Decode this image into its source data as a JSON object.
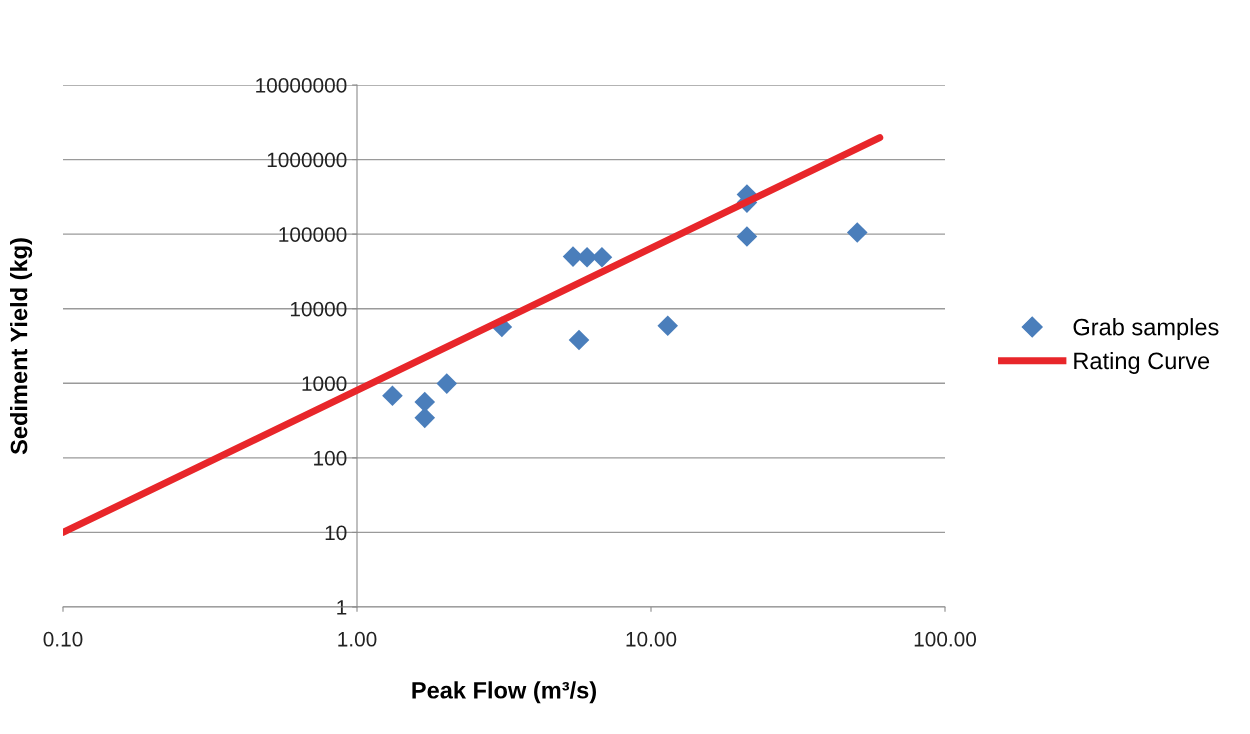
{
  "chart_data": {
    "type": "scatter",
    "xlabel": "Peak Flow (m³/s)",
    "ylabel": "Sediment Yield (kg)",
    "log": "xy",
    "grid": "y",
    "legend": "right",
    "xlim": [
      0.1,
      100
    ],
    "xticks": [
      {
        "value": 0.1,
        "label": "0.10"
      },
      {
        "value": 1,
        "label": "1.00"
      },
      {
        "value": 10,
        "label": "10.00"
      },
      {
        "value": 100,
        "label": "100.00"
      }
    ],
    "ylim": [
      1,
      10000000
    ],
    "yticks": [
      1,
      10,
      100,
      1000,
      10000,
      100000,
      1000000,
      10000000
    ],
    "series": [
      {
        "name": "Grab samples",
        "marker": "diamond",
        "color": "#4a7ebb",
        "x": [
          1.32,
          1.7,
          1.7,
          2.02,
          3.11,
          5.43,
          6.06,
          6.81,
          5.69,
          11.4,
          21.2,
          21.2,
          21.2,
          50.3
        ],
        "values": [
          680,
          560,
          344,
          990,
          5700,
          50000,
          49000,
          49000,
          3800,
          5900,
          340000,
          265000,
          93000,
          105000
        ]
      },
      {
        "name": "Rating Curve",
        "type": "line",
        "marker": "none",
        "line_style": "solid",
        "color": "#e8262a",
        "x": [
          0.1,
          60
        ],
        "values": [
          10,
          1970000
        ]
      }
    ]
  }
}
